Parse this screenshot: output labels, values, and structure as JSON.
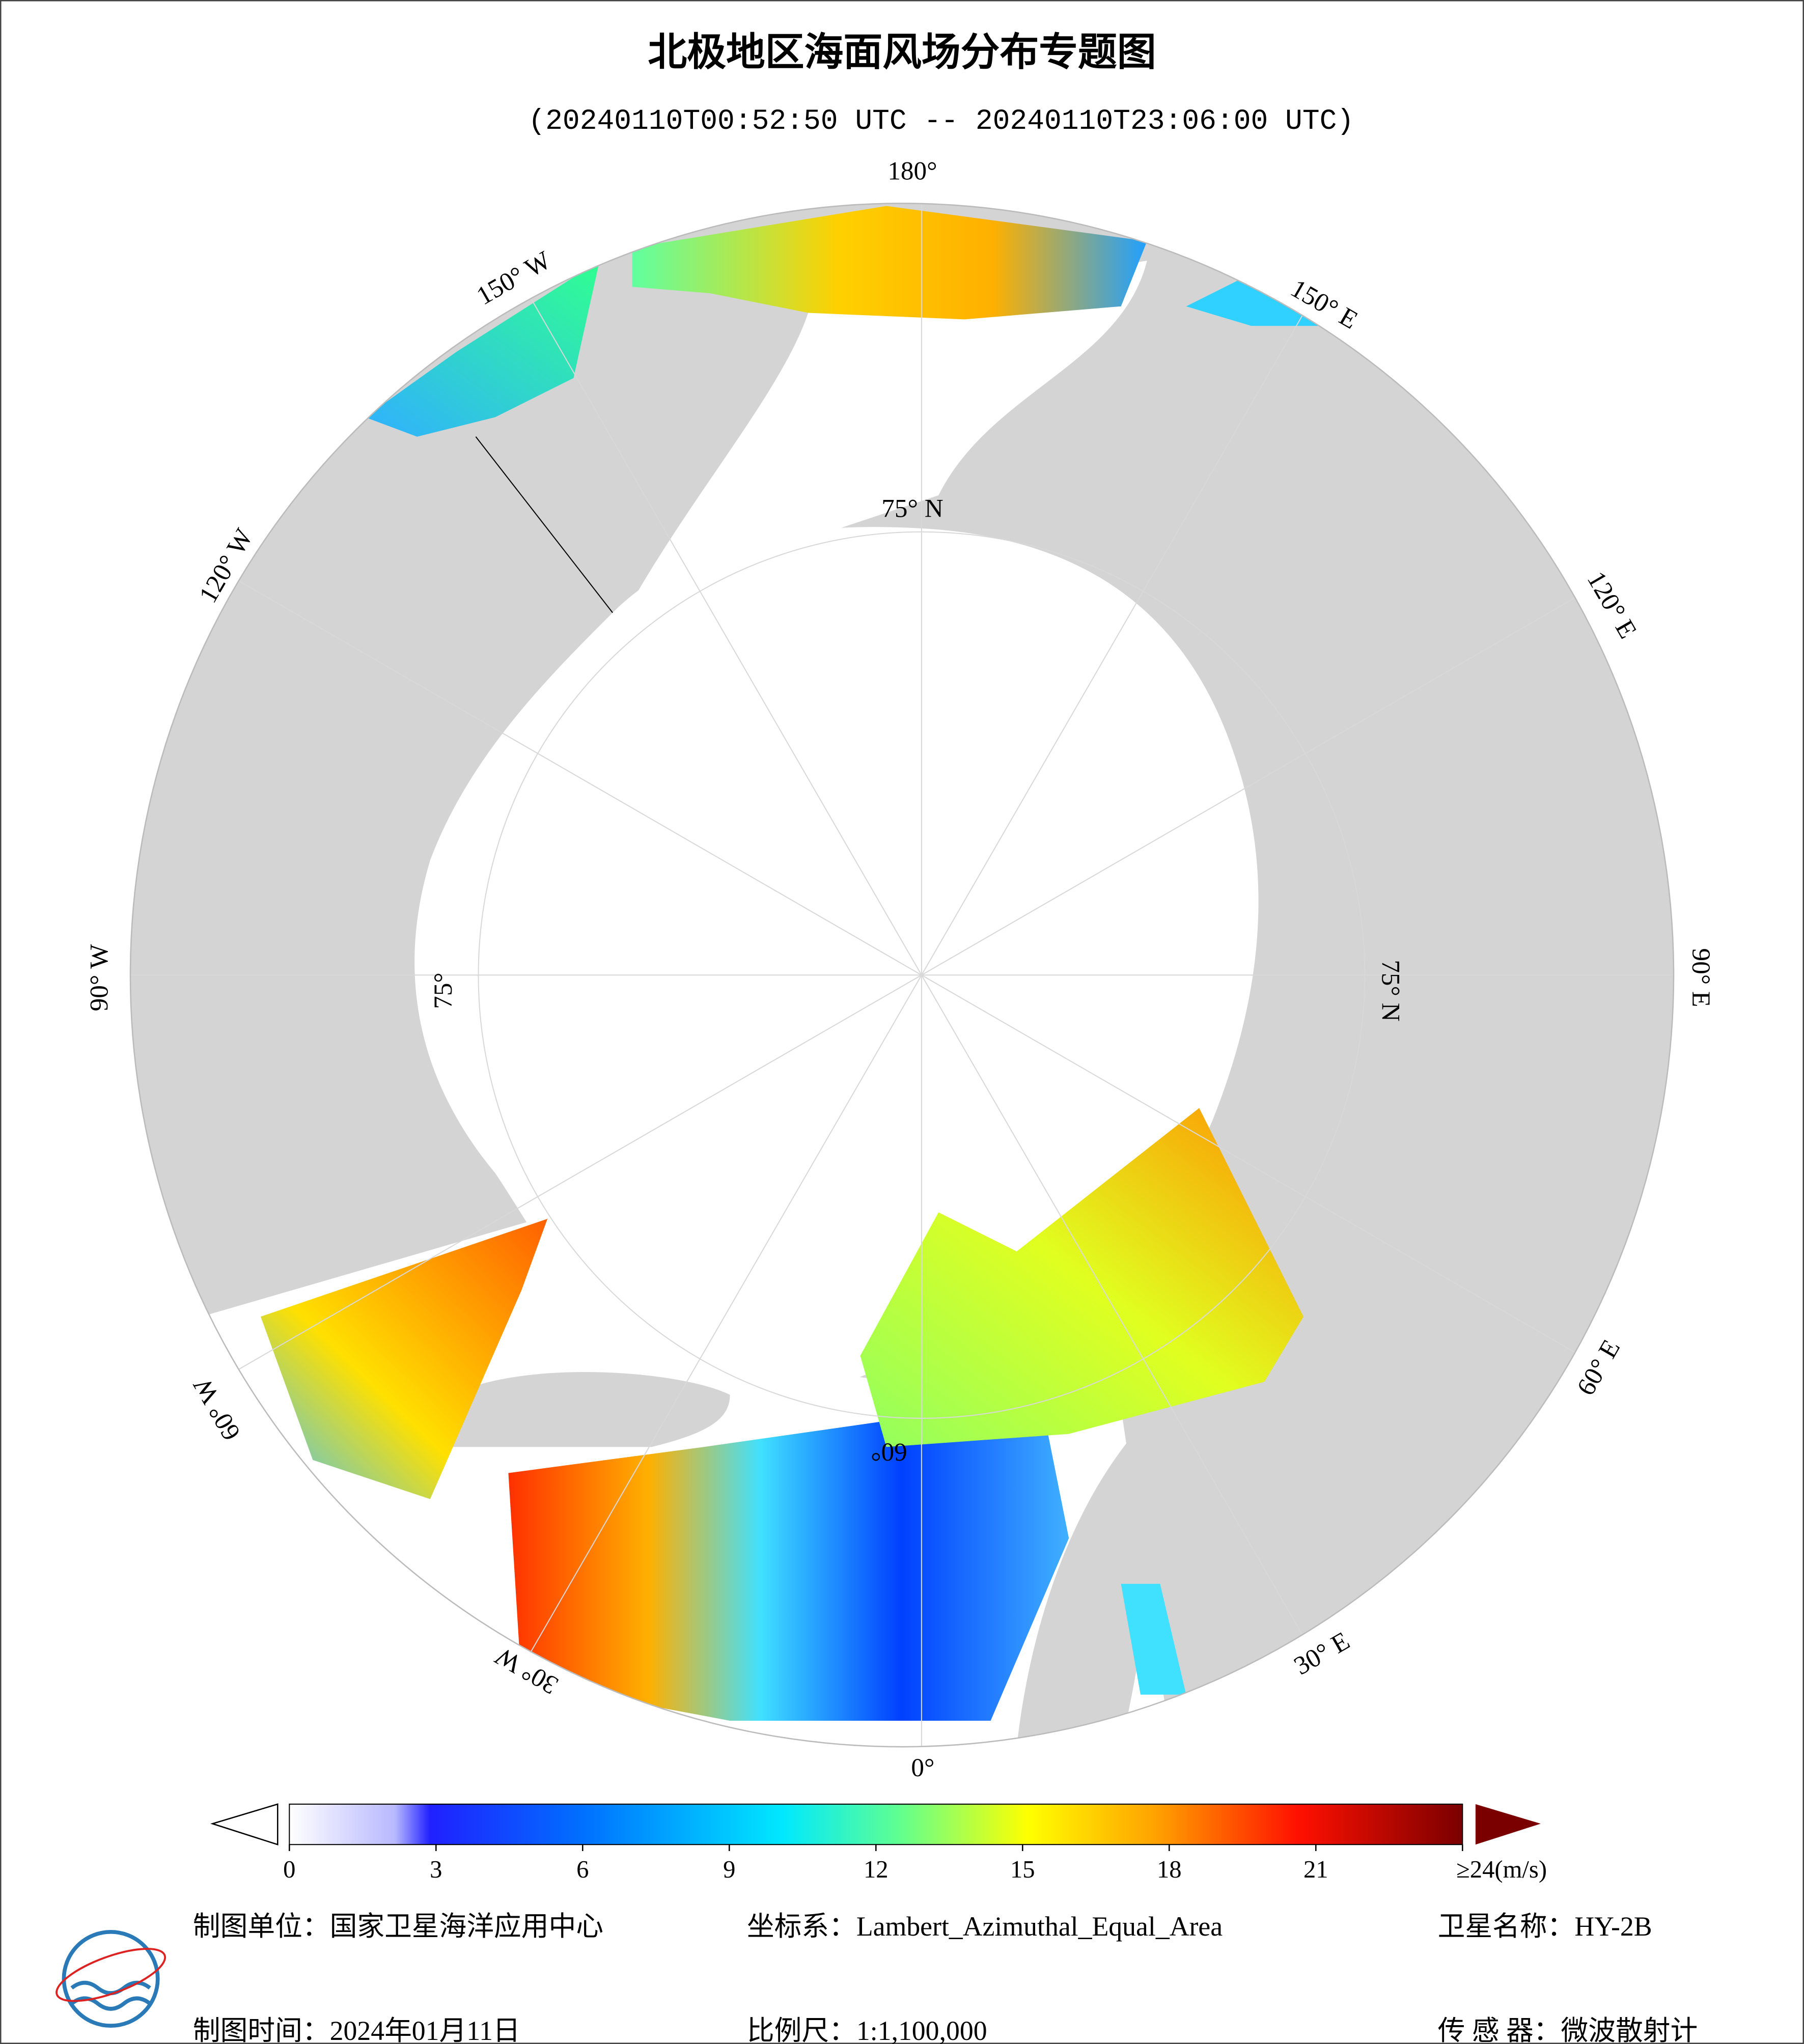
{
  "header": {
    "title": "北极地区海面风场分布专题图",
    "subtitle": "(20240110T00:52:50 UTC -- 20240110T23:06:00 UTC)"
  },
  "map": {
    "longitude_labels": [
      "180°",
      "150° E",
      "120° E",
      "90° E",
      "60° E",
      "30° E",
      "0°",
      "30° W",
      "60° W",
      "90° W",
      "120° W",
      "150° W"
    ],
    "latitude_labels": [
      "75° N",
      "75° N",
      "75°",
      "60°"
    ]
  },
  "colorbar": {
    "range": [
      0,
      24
    ],
    "ticks": [
      0,
      3,
      6,
      9,
      12,
      15,
      18,
      21,
      {
        "value": 24,
        "label": "≥24(m/s)"
      }
    ]
  },
  "footer": {
    "unit": "制图单位：国家卫星海洋应用中心",
    "crs": "坐标系：Lambert_Azimuthal_Equal_Area",
    "satellite": "卫星名称：HY-2B",
    "date": "制图时间：2024年01月11日",
    "scale": "比例尺：1:1,100,000",
    "sensor": "传 感 器：微波散射计"
  }
}
